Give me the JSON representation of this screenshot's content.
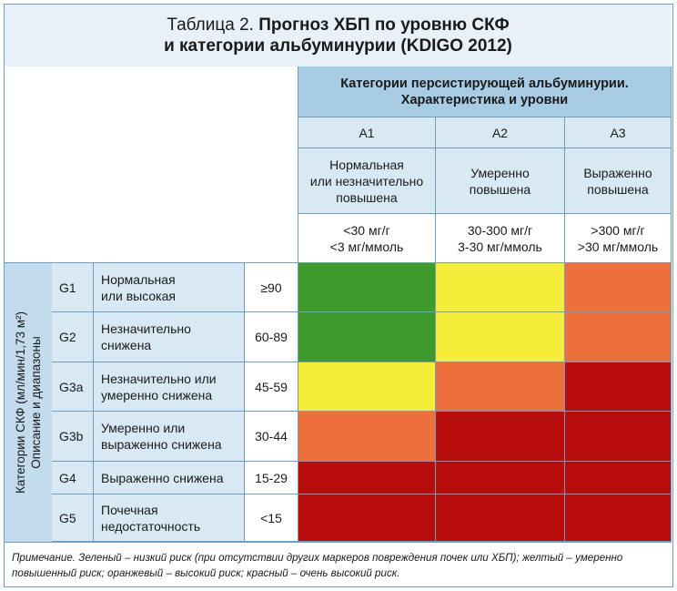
{
  "title": {
    "prefix": "Таблица 2.",
    "line1_bold": "Прогноз ХБП по уровню СКФ",
    "line2_bold": "и категории альбуминурии (KDIGO 2012)"
  },
  "albuminuria_header": {
    "line1": "Категории персистирующей альбуминурии.",
    "line2": "Характеристика и уровни"
  },
  "albuminuria_categories": [
    {
      "code": "A1",
      "desc_lines": [
        "Нормальная",
        "или незначительно",
        "повышена"
      ],
      "range_lines": [
        "<30 мг/г",
        "<3 мг/ммоль"
      ]
    },
    {
      "code": "A2",
      "desc_lines": [
        "Умеренно",
        "повышена"
      ],
      "range_lines": [
        "30-300 мг/г",
        "3-30 мг/ммоль"
      ]
    },
    {
      "code": "A3",
      "desc_lines": [
        "Выраженно",
        "повышена"
      ],
      "range_lines": [
        ">300 мг/г",
        ">30 мг/ммоль"
      ]
    }
  ],
  "gfr_axis_label": {
    "line1": "Категории СКФ (мл/мин/1,73 м²)",
    "line2": "Описание и диапазоны"
  },
  "gfr_categories": [
    {
      "code": "G1",
      "desc_lines": [
        "Нормальная",
        "или высокая"
      ],
      "range": "≥90",
      "risk": [
        "green",
        "yellow",
        "orange"
      ]
    },
    {
      "code": "G2",
      "desc_lines": [
        "Незначительно",
        "снижена"
      ],
      "range": "60-89",
      "risk": [
        "green",
        "yellow",
        "orange"
      ]
    },
    {
      "code": "G3a",
      "desc_lines": [
        "Незначительно или",
        "умеренно снижена"
      ],
      "range": "45-59",
      "risk": [
        "yellow",
        "orange",
        "red"
      ]
    },
    {
      "code": "G3b",
      "desc_lines": [
        "Умеренно или",
        "выраженно снижена"
      ],
      "range": "30-44",
      "risk": [
        "orange",
        "red",
        "red"
      ]
    },
    {
      "code": "G4",
      "desc_lines": [
        "Выраженно снижена"
      ],
      "range": "15-29",
      "risk": [
        "red",
        "red",
        "red"
      ]
    },
    {
      "code": "G5",
      "desc_lines": [
        "Почечная",
        "недостаточность"
      ],
      "range": "<15",
      "risk": [
        "red",
        "red",
        "red"
      ]
    }
  ],
  "risk_colors": {
    "green": "#3f9a2e",
    "yellow": "#f6ec3a",
    "orange": "#ec6f3c",
    "red": "#b80d0d"
  },
  "note": {
    "line1": "Примечание. Зеленый – низкий риск (при отсутствии других маркеров повреждения почек или ХБП); желтый – умеренно",
    "line2": "повышенный риск; оранжевый – высокий риск; красный – очень высокий риск."
  }
}
